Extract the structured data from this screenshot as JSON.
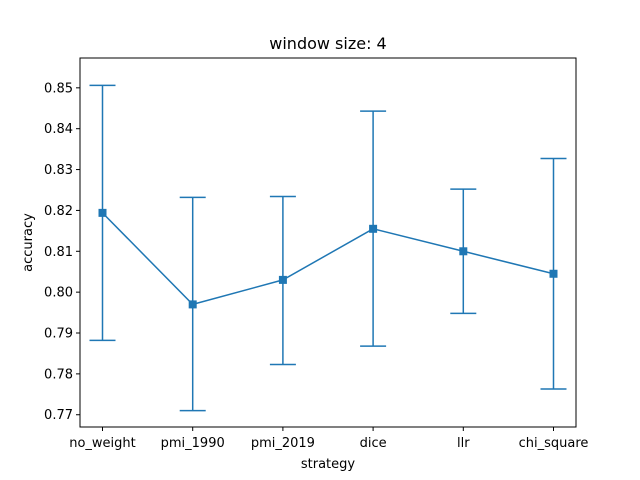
{
  "chart_data": {
    "type": "line",
    "title": "window size: 4",
    "xlabel": "strategy",
    "ylabel": "accuracy",
    "categories": [
      "no_weight",
      "pmi_1990",
      "pmi_2019",
      "dice",
      "llr",
      "chi_square"
    ],
    "series": [
      {
        "values": [
          0.8194,
          0.797,
          0.803,
          0.8155,
          0.81,
          0.8045
        ],
        "error_low": [
          0.7882,
          0.771,
          0.7823,
          0.7868,
          0.7948,
          0.7763
        ],
        "error_high": [
          0.8506,
          0.8232,
          0.8234,
          0.8443,
          0.8252,
          0.8327
        ],
        "marker": "square",
        "color": "#1f77b4"
      }
    ],
    "ylim": [
      0.767,
      0.8573
    ],
    "yticks": [
      "0.77",
      "0.78",
      "0.79",
      "0.80",
      "0.81",
      "0.82",
      "0.83",
      "0.84",
      "0.85"
    ],
    "grid": false,
    "legend": "none"
  }
}
